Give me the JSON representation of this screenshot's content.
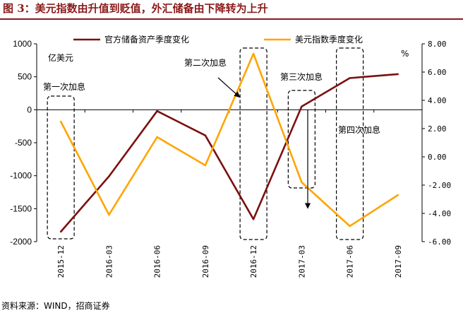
{
  "title": "图 3：美元指数由升值到贬值，外汇储备由下降转为上升",
  "source": "资料来源：WIND，招商证券",
  "chart_data": {
    "type": "line",
    "categories": [
      "2015-12",
      "2016-03",
      "2016-06",
      "2016-09",
      "2016-12",
      "2017-03",
      "2017-06",
      "2017-09"
    ],
    "series": [
      {
        "name": "官方储备资产季度变化",
        "axis": "left",
        "color": "#7b1010",
        "values": [
          -1850,
          -1010,
          -20,
          -390,
          -1660,
          50,
          480,
          540
        ]
      },
      {
        "name": "美元指数季度变化",
        "axis": "right",
        "color": "#ffa500",
        "values": [
          2.5,
          -4.1,
          1.4,
          -0.6,
          7.3,
          -1.8,
          -4.9,
          -2.7
        ]
      }
    ],
    "left_axis": {
      "unit_label": "亿美元",
      "ylim": [
        -2000,
        1000
      ],
      "ticks": [
        "1000",
        "500",
        "0",
        "-500",
        "-1000",
        "-1500",
        "-2000"
      ]
    },
    "right_axis": {
      "unit_label": "%",
      "ylim": [
        -6,
        8
      ],
      "ticks": [
        "8.00",
        "6.00",
        "4.00",
        "2.00",
        "0.00",
        "-2.00",
        "-4.00",
        "-6.00"
      ]
    },
    "legend_position": "top",
    "grid": false,
    "annotations": [
      {
        "text": "第一次加息",
        "category": "2015-12"
      },
      {
        "text": "第二次加息",
        "category": "2016-12"
      },
      {
        "text": "第三次加息",
        "category": "2017-03"
      },
      {
        "text": "第四次加息",
        "category": "2017-06"
      }
    ]
  }
}
